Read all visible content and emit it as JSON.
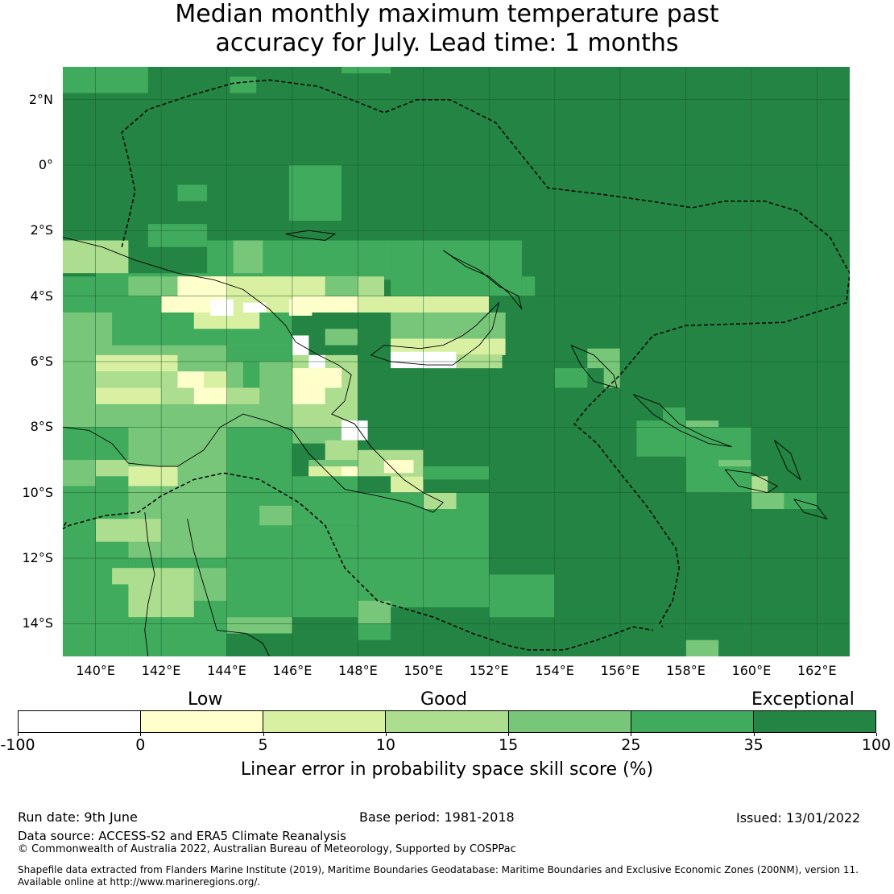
{
  "title": {
    "line1": "Median monthly maximum temperature past",
    "line2": "accuracy for July. Lead time: 1 months"
  },
  "map": {
    "latitude_labels": [
      "2°N",
      "0°",
      "2°S",
      "4°S",
      "6°S",
      "8°S",
      "10°S",
      "12°S",
      "14°S"
    ],
    "longitude_labels": [
      "140°E",
      "142°E",
      "144°E",
      "146°E",
      "148°E",
      "150°E",
      "152°E",
      "154°E",
      "156°E",
      "158°E",
      "160°E",
      "162°E"
    ],
    "extent": {
      "lon_min": 139.0,
      "lon_max": 163.0,
      "lat_min": -15.0,
      "lat_max": 3.0
    },
    "grid_lines": true,
    "boundary_style": "dashed"
  },
  "legend": {
    "class_labels": [
      "Low",
      "Good",
      "Exceptional"
    ],
    "tick_labels": [
      "-100",
      "0",
      "5",
      "10",
      "15",
      "25",
      "35",
      "100"
    ],
    "bin_colors": [
      "#ffffff",
      "#ffffcc",
      "#d9f0a3",
      "#addd8e",
      "#78c679",
      "#41ab5d",
      "#238443"
    ],
    "axis_label": "Linear error in probability space skill score (%)"
  },
  "footer": {
    "run_date": "Run date: 9th June",
    "base_period": "Base period: 1981-2018",
    "issued": "Issued: 13/01/2022",
    "data_source": "Data source: ACCESS-S2 and ERA5 Climate Reanalysis",
    "copyright": "© Commonwealth of Australia 2022, Australian Bureau of Meteorology, Supported by COSPPac",
    "shapefile_note_line1": "Shapefile data extracted from Flanders Marine Institute (2019), Maritime Boundaries Geodatabase: Maritime Boundaries and Exclusive Economic Zones (200NM), version 11.",
    "shapefile_note_line2": "Available online at http://www.marineregions.org/."
  }
}
